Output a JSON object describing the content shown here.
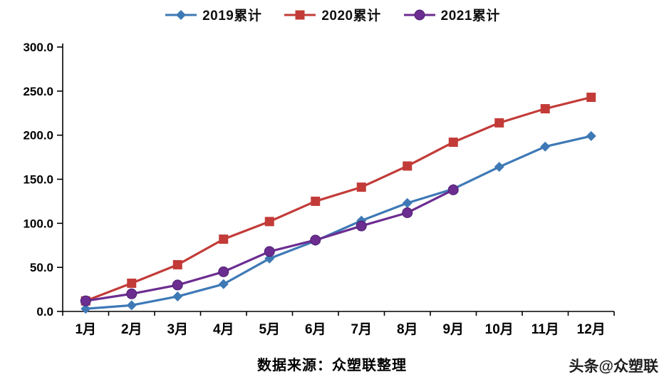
{
  "chart_data": {
    "type": "line",
    "categories": [
      "1月",
      "2月",
      "3月",
      "4月",
      "5月",
      "6月",
      "7月",
      "8月",
      "9月",
      "10月",
      "11月",
      "12月"
    ],
    "series": [
      {
        "name": "2019累计",
        "color": "#3E79B6",
        "marker": "diamond",
        "values": [
          3,
          7,
          17,
          31,
          60,
          80,
          103,
          123,
          139,
          164,
          187,
          199
        ]
      },
      {
        "name": "2020累计",
        "color": "#C23B38",
        "marker": "square",
        "values": [
          12,
          32,
          53,
          82,
          102,
          125,
          141,
          165,
          192,
          214,
          230,
          243
        ]
      },
      {
        "name": "2021累计",
        "color": "#6C2D91",
        "marker": "circle",
        "values": [
          12,
          20,
          30,
          45,
          68,
          81,
          97,
          112,
          138
        ]
      }
    ],
    "title": "",
    "xlabel": "",
    "ylabel": "",
    "ylim": [
      0,
      300
    ],
    "ytick_step": 50,
    "ytick_format_decimals": 1,
    "grid": false,
    "legend_position": "top"
  },
  "caption": {
    "text": "数据来源：众塑联整理"
  },
  "watermark": {
    "text": "头条@众塑联"
  }
}
